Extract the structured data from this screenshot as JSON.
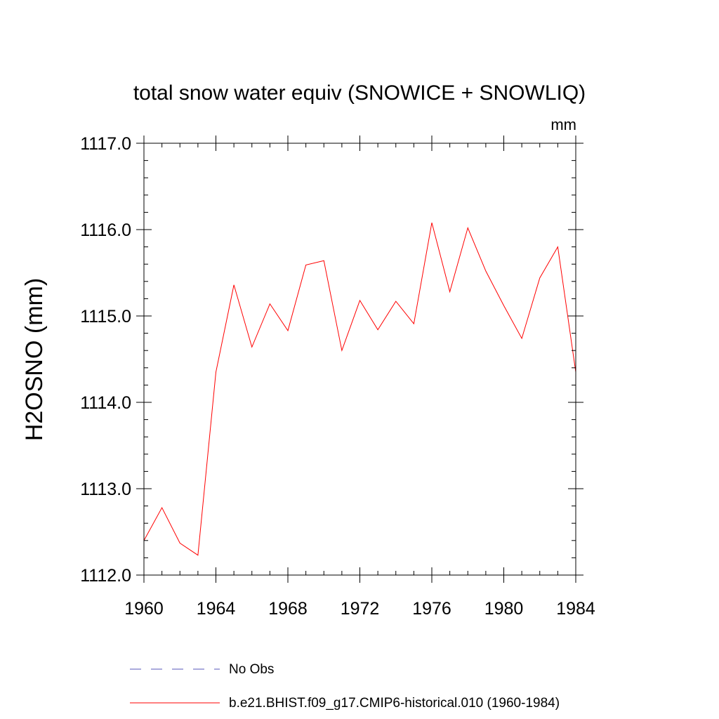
{
  "chart_data": {
    "type": "line",
    "title": "total snow water equiv (SNOWICE + SNOWLIQ)",
    "units": "mm",
    "ylabel": "H2OSNO  (mm)",
    "xlabel": "",
    "xlim": [
      1960,
      1984
    ],
    "ylim": [
      1112.0,
      1117.0
    ],
    "x_ticks": [
      "1960",
      "1964",
      "1968",
      "1972",
      "1976",
      "1980",
      "1984"
    ],
    "y_ticks": [
      "1112.0",
      "1113.0",
      "1114.0",
      "1115.0",
      "1116.0",
      "1117.0"
    ],
    "grid": false,
    "legend_placement": "bottom",
    "series": [
      {
        "name": "No Obs",
        "color": "#5555bb",
        "style": "dashed",
        "values": []
      },
      {
        "name": "b.e21.BHIST.f09_g17.CMIP6-historical.010 (1960-1984)",
        "color": "#ff0000",
        "style": "solid",
        "x": [
          1960,
          1961,
          1962,
          1963,
          1964,
          1965,
          1966,
          1967,
          1968,
          1969,
          1970,
          1971,
          1972,
          1973,
          1974,
          1975,
          1976,
          1977,
          1978,
          1979,
          1980,
          1981,
          1982,
          1983,
          1984
        ],
        "values": [
          1112.4,
          1112.78,
          1112.37,
          1112.23,
          1114.35,
          1115.36,
          1114.64,
          1115.14,
          1114.83,
          1115.59,
          1115.64,
          1114.6,
          1115.18,
          1114.84,
          1115.17,
          1114.91,
          1116.08,
          1115.28,
          1116.02,
          1115.52,
          1115.12,
          1114.74,
          1115.44,
          1115.8,
          1114.35
        ]
      }
    ]
  }
}
